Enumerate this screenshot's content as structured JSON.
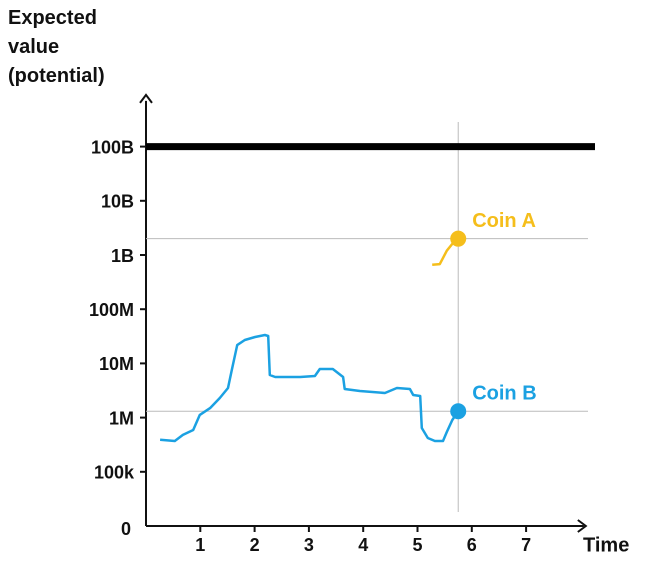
{
  "chart_data": {
    "type": "line",
    "y_label": "Expected value (potential)",
    "x_label": "Time",
    "y_log": true,
    "y_origin_label": "0",
    "xlim": [
      0,
      8.1
    ],
    "ylim": [
      10000,
      900000000000
    ],
    "xticks": [
      1,
      2,
      3,
      4,
      5,
      6,
      7
    ],
    "yticks": [
      {
        "value": 100000,
        "label": "100k"
      },
      {
        "value": 1000000,
        "label": "1M"
      },
      {
        "value": 10000000,
        "label": "10M"
      },
      {
        "value": 100000000,
        "label": "100M"
      },
      {
        "value": 1000000000,
        "label": "1B"
      },
      {
        "value": 10000000000,
        "label": "10B"
      },
      {
        "value": 100000000000,
        "label": "100B"
      }
    ],
    "ceiling_value": 100000000000,
    "series": [
      {
        "name": "Coin A",
        "color": "#f5be1b",
        "x": [
          5.27,
          5.41,
          5.54,
          5.64,
          5.75
        ],
        "values": [
          660000000,
          680000000,
          1200000000,
          1600000000,
          2000000000
        ]
      },
      {
        "name": "Coin B",
        "color": "#1ba1e2",
        "x": [
          0.26,
          0.53,
          0.68,
          0.87,
          0.99,
          1.18,
          1.36,
          1.51,
          1.58,
          1.68,
          1.82,
          2.01,
          2.19,
          2.25,
          2.28,
          2.38,
          2.84,
          3.11,
          3.2,
          3.44,
          3.63,
          3.66,
          3.94,
          4.4,
          4.62,
          4.86,
          4.92,
          5.05,
          5.08,
          5.19,
          5.32,
          5.47,
          5.54,
          5.64,
          5.75
        ],
        "values": [
          390000,
          370000,
          480000,
          590000,
          1120000,
          1500000,
          2300000,
          3520000,
          7550000,
          21800000,
          27000000,
          30700000,
          33400000,
          32000000,
          6110000,
          5610000,
          5610000,
          5860000,
          7880000,
          7880000,
          5610000,
          3370000,
          3100000,
          2840000,
          3520000,
          3370000,
          2610000,
          2500000,
          643000,
          421000,
          370000,
          370000,
          542000,
          904000,
          1310000
        ]
      }
    ]
  }
}
